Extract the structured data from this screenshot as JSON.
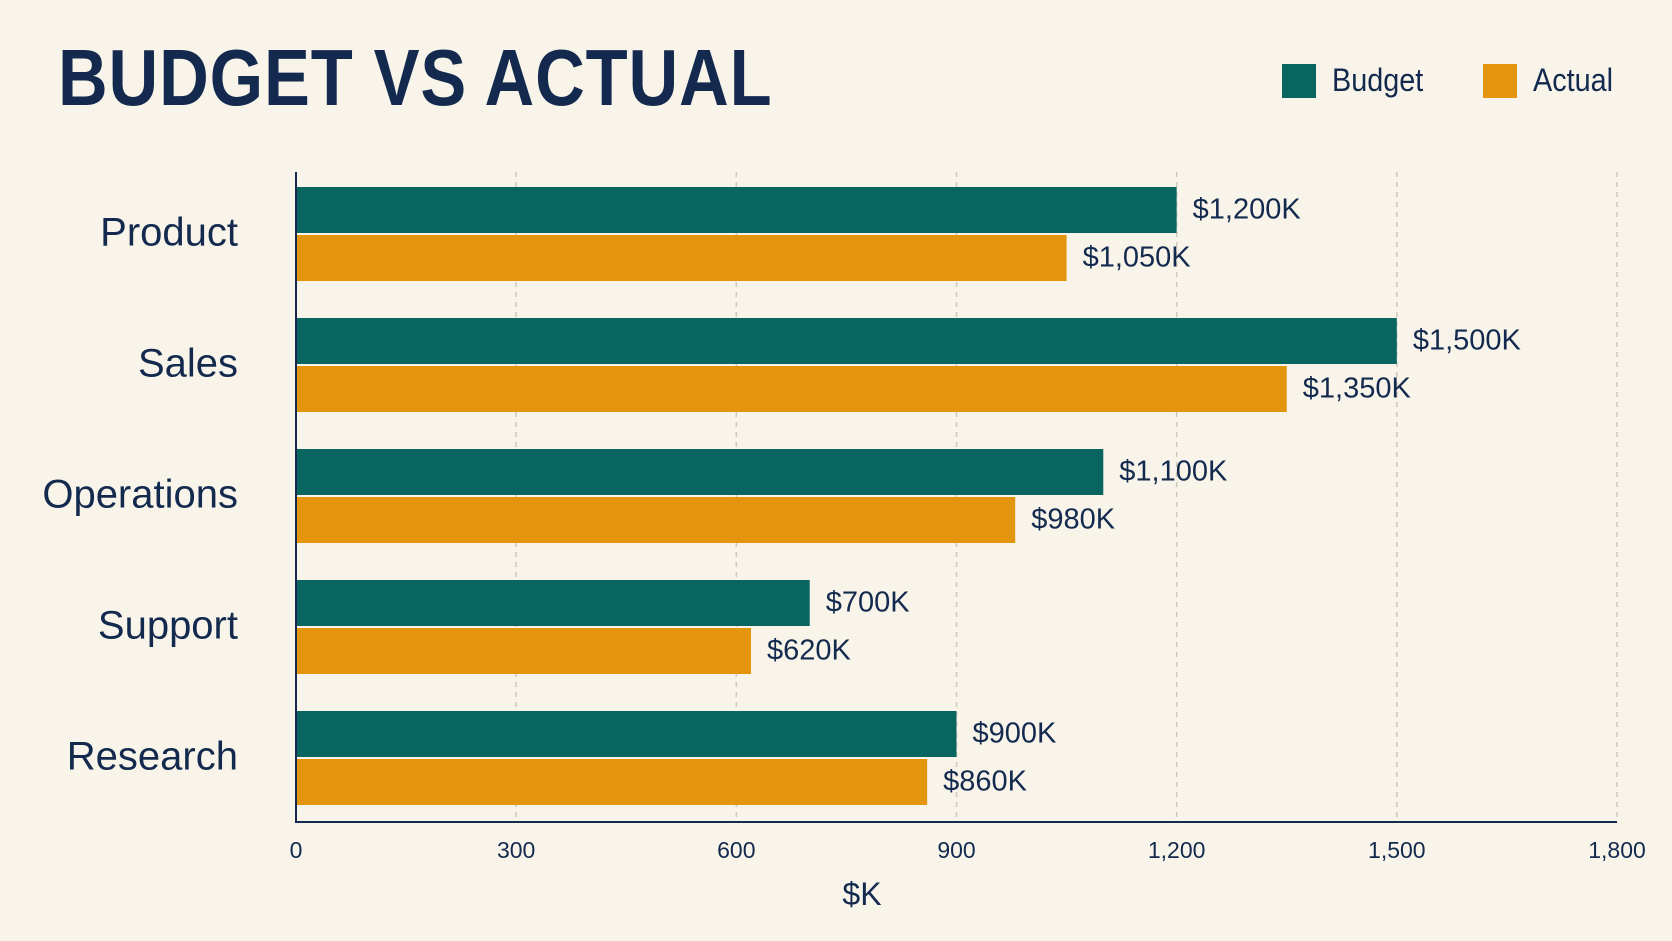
{
  "chart_data": {
    "type": "bar",
    "orientation": "horizontal",
    "title": "BUDGET VS ACTUAL",
    "xlabel": "$K",
    "ylabel": "",
    "categories": [
      "Product",
      "Sales",
      "Operations",
      "Support",
      "Research"
    ],
    "series": [
      {
        "name": "Budget",
        "color": "#08655f",
        "values": [
          1200,
          1500,
          1100,
          700,
          900
        ],
        "labels": [
          "$1,200K",
          "$1,500K",
          "$1,100K",
          "$700K",
          "$900K"
        ]
      },
      {
        "name": "Actual",
        "color": "#e3960d",
        "values": [
          1050,
          1350,
          980,
          620,
          860
        ],
        "labels": [
          "$1,050K",
          "$1,350K",
          "$980K",
          "$620K",
          "$860K"
        ]
      }
    ],
    "xlim": [
      0,
      1800
    ],
    "xticks": [
      0,
      300,
      600,
      900,
      1200,
      1500,
      1800
    ],
    "xtick_labels": [
      "0",
      "300",
      "600",
      "900",
      "1,200",
      "1,500",
      "1,800"
    ],
    "grid": "vertical dashed",
    "legend_position": "top-right"
  }
}
